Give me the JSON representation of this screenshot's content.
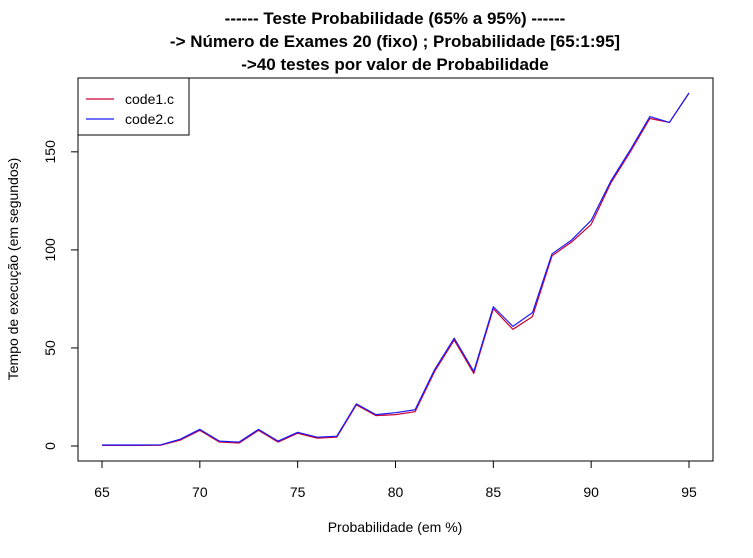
{
  "chart_data": {
    "type": "line",
    "title_lines": [
      "------ Teste Probabilidade (65% a 95%) ------",
      "-> Número de Exames 20 (fixo) ; Probabilidade [65:1:95]",
      "->40 testes por valor de Probabilidade"
    ],
    "xlabel": "Probabilidade (em %)",
    "ylabel": "Tempo de execução (em segundos)",
    "xlim": [
      65,
      95
    ],
    "ylim": [
      0,
      180
    ],
    "x_ticks": [
      65,
      70,
      75,
      80,
      85,
      90,
      95
    ],
    "x_tick_labels": [
      "65",
      "70",
      "75",
      "80",
      "85",
      "90",
      "95"
    ],
    "y_ticks": [
      0,
      50,
      100,
      150
    ],
    "y_tick_labels": [
      "0",
      "50",
      "100",
      "150"
    ],
    "grid": false,
    "legend_position": "top-left",
    "x": [
      65,
      66,
      67,
      68,
      69,
      70,
      71,
      72,
      73,
      74,
      75,
      76,
      77,
      78,
      79,
      80,
      81,
      82,
      83,
      84,
      85,
      86,
      87,
      88,
      89,
      90,
      91,
      92,
      93,
      94,
      95
    ],
    "series": [
      {
        "name": "code1.c",
        "color": "#cc0033",
        "values": [
          0.3,
          0.3,
          0.3,
          0.4,
          3,
          8,
          2,
          1.5,
          8,
          2,
          6.5,
          4,
          4.5,
          21,
          15.5,
          16,
          17.5,
          38,
          54,
          37,
          70,
          59.5,
          66,
          97,
          104,
          113,
          134,
          150,
          167,
          165,
          180
        ]
      },
      {
        "name": "code2.c",
        "color": "#1a1aff",
        "values": [
          0.5,
          0.5,
          0.5,
          0.6,
          3.5,
          8.5,
          2.5,
          2,
          8.5,
          2.5,
          7,
          4.5,
          5,
          21.5,
          16,
          17,
          18.5,
          39,
          55,
          38,
          71,
          61,
          68,
          98,
          105,
          115,
          135,
          151,
          168,
          165,
          180
        ]
      }
    ]
  }
}
